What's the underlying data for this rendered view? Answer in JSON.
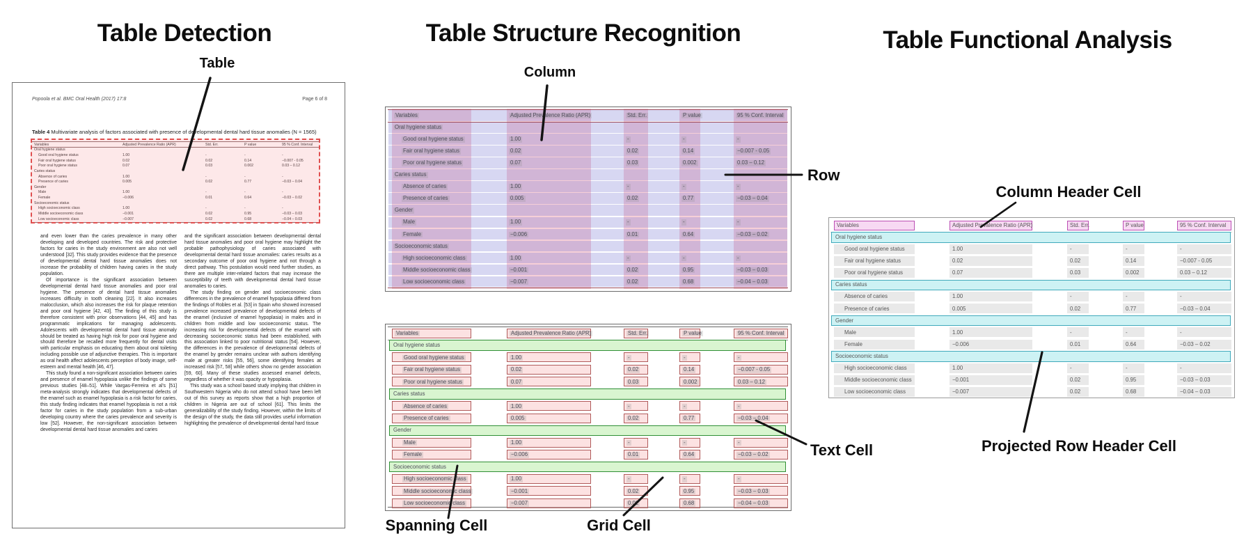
{
  "panels": {
    "detection": {
      "title": "Table Detection"
    },
    "structure": {
      "title": "Table Structure Recognition"
    },
    "functional": {
      "title": "Table Functional Analysis"
    }
  },
  "callouts": {
    "table": "Table",
    "column": "Column",
    "row": "Row",
    "spanning_cell": "Spanning Cell",
    "grid_cell": "Grid Cell",
    "text_cell": "Text Cell",
    "column_header_cell": "Column Header Cell",
    "projected_row_header_cell": "Projected Row Header Cell"
  },
  "page": {
    "header_left": "Popoola et al. BMC Oral Health  (2017) 17:8",
    "header_right": "Page 6 of 8",
    "caption_label": "Table 4",
    "caption_text": " Multivariate analysis of factors associated with presence of developmental dental hard tissue anomalies (N = 1565)",
    "column1_paragraphs": [
      "and even lower than the caries prevalence in many other developing and developed countries. The risk and protective factors for caries in the study environment are also not well understood [32]. This study provides evidence that the presence of developmental dental hard tissue anomalies does not increase the probability of children having caries in the study population.",
      "Of importance is the significant association between developmental dental hard tissue anomalies and poor oral hygiene. The presence of dental hard tissue anomalies increases difficulty in tooth cleaning [22]. It also increases malocclusion, which also increases the risk for plaque retention and poor oral hygiene [42, 43]. The finding of this study is therefore consistent with prior observations [44, 45] and has programmatic implications for managing adolescents. Adolescents with developmental dental hard tissue anomaly should be treated as having high risk for poor oral hygiene and should therefore be recalled more frequently for dental visits with particular emphasis on educating them about oral toileting including possible use of adjunctive therapies. This is important as oral health affect adolescents perception of body image, self-esteem and mental health [46, 47].",
      "This study found a non-significant association between caries and presence of enamel hypoplasia unlike the findings of some previous studies [48–51]. While Vargas-Ferreira et al's [51] meta-analysis strongly indicates that developmental defects of the enamel such as enamel hypoplasia is a risk factor for caries, this study finding indicates that enamel hypoplasia is not a risk factor for caries in the study population from a sub-urban developing country where the caries prevalence and severity is low [52]. However, the non-significant association between developmental dental hard tissue anomalies and caries"
    ],
    "column2_paragraphs": [
      "and the significant association between developmental dental hard tissue anomalies and poor oral hygiene may highlight the probable pathophysiology of caries associated with developmental dental hard tissue anomalies: caries results as a secondary outcome of poor oral hygiene and not through a direct pathway. This postulation would need further studies, as there are multiple inter-related factors that may increase the susceptibility of teeth with developmental dental hard tissue anomalies to caries.",
      "The study finding on gender and socioeconomic class differences in the prevalence of enamel hypoplasia differed from the findings of Robles et al. [53] in Spain who showed increased prevalence increased prevalence of developmental defects of the enamel (inclusive of enamel hypoplasia) in males and in children from middle and low socioeconomic status. The increasing risk for developmental defects of the enamel with decreasing socioeconomic status had been established, with this association linked to poor nutritional status [54]. However, the differences in the prevalence of developmental defects of the enamel by gender remains unclear with authors identifying male at greater risks [55, 56], some identifying females at increased risk [57, 58] while others show no gender association [59, 60]. Many of these studies assessed enamel defects, regardless of whether it was opacity or hypoplasia.",
      "This study was a school based study implying that children in Southwestern Nigeria who do not attend school have been left out of this survey as reports show that a high proportion of children in Nigeria are out of school [61]. This limits the generalizability of the study finding. However, within the limits of the design of the study, the data still provides useful information highlighting the prevalence of developmental dental hard tissue"
    ]
  },
  "table": {
    "columns": [
      "Variables",
      "Adjusted Prevalence Ratio (APR)",
      "Std. Err.",
      "P value",
      "95 % Conf. Interval"
    ],
    "rows": [
      {
        "type": "section",
        "cells": [
          "Oral hygiene status"
        ]
      },
      {
        "type": "data",
        "cells": [
          "Good oral hygiene status",
          "1.00",
          "-",
          "-",
          "-"
        ]
      },
      {
        "type": "data",
        "cells": [
          "Fair oral hygiene status",
          "0.02",
          "0.02",
          "0.14",
          "−0.007 - 0.05"
        ]
      },
      {
        "type": "data",
        "cells": [
          "Poor oral hygiene status",
          "0.07",
          "0.03",
          "0.002",
          "0.03 – 0.12"
        ]
      },
      {
        "type": "section",
        "cells": [
          "Caries status"
        ]
      },
      {
        "type": "data",
        "cells": [
          "Absence of caries",
          "1.00",
          "-",
          "-",
          "-"
        ]
      },
      {
        "type": "data",
        "cells": [
          "Presence of caries",
          "0.005",
          "0.02",
          "0.77",
          "−0.03 – 0.04"
        ]
      },
      {
        "type": "section",
        "cells": [
          "Gender"
        ]
      },
      {
        "type": "data",
        "cells": [
          "Male",
          "1.00",
          "-",
          "-",
          "-"
        ]
      },
      {
        "type": "data",
        "cells": [
          "Female",
          "−0.006",
          "0.01",
          "0.64",
          "−0.03 – 0.02"
        ]
      },
      {
        "type": "section",
        "cells": [
          "Socioeconomic status"
        ]
      },
      {
        "type": "data",
        "cells": [
          "High socioeconomic class",
          "1.00",
          "-",
          "-",
          "-"
        ]
      },
      {
        "type": "data",
        "cells": [
          "Middle socioeconomic class",
          "−0.001",
          "0.02",
          "0.95",
          "−0.03 – 0.03"
        ]
      },
      {
        "type": "data",
        "cells": [
          "Low socioeconomic class",
          "−0.007",
          "0.02",
          "0.68",
          "−0.04 – 0.03"
        ]
      }
    ]
  },
  "colors": {
    "row_overlay": "rgba(124,124,212,0.30)",
    "column_overlay": "rgba(224,82,110,0.28)",
    "grid_cell_fill": "rgba(250,202,202,0.55)",
    "grid_cell_border": "#b05a5a",
    "spanning_cell_fill": "#d9f5d0",
    "spanning_cell_border": "#2f8f35",
    "column_header_fill": "#f7d9f3",
    "column_header_border": "#bb4fb4",
    "projected_row_header_fill": "#cdf2f4",
    "projected_row_header_border": "#3fa9bb",
    "text_cell_fill": "rgba(140,140,140,0.22)",
    "detection_fill": "rgba(246,118,122,0.17)",
    "detection_border": "#e04f4f",
    "table_rule_dark": "#9c4a5a"
  }
}
